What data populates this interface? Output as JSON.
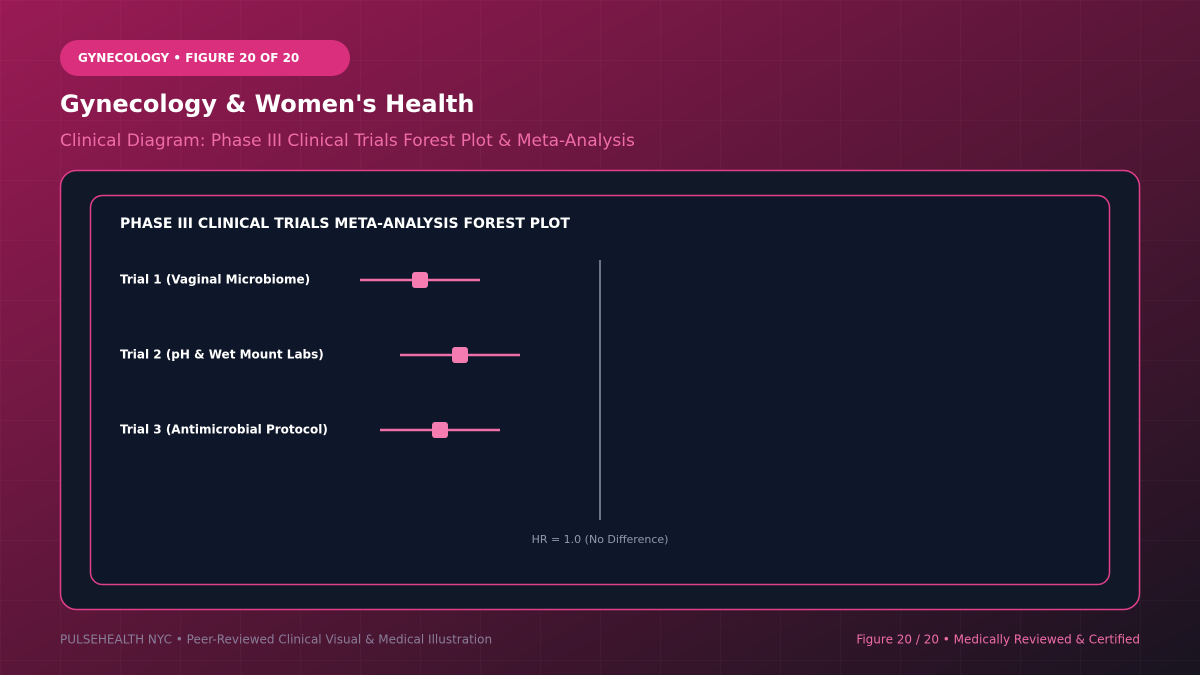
{
  "header": {
    "badge": "GYNECOLOGY • FIGURE 20 OF 20",
    "title": "Gynecology & Women's Health",
    "subtitle": "Clinical Diagram: Phase III Clinical Trials Forest Plot & Meta-Analysis"
  },
  "figure": {
    "title": "PHASE III CLINICAL TRIALS META-ANALYSIS FOREST PLOT",
    "rows": [
      "Trial 1 (Vaginal Microbiome)",
      "Trial 2 (pH & Wet Mount Labs)",
      "Trial 3 (Antimicrobial Protocol)"
    ],
    "reference_label": "HR = 1.0 (No Difference)"
  },
  "footer": {
    "left": "PULSEHEALTH NYC • Peer-Reviewed Clinical Visual & Medical Illustration",
    "right": "Figure 20 / 20 • Medically Reviewed & Certified"
  }
}
